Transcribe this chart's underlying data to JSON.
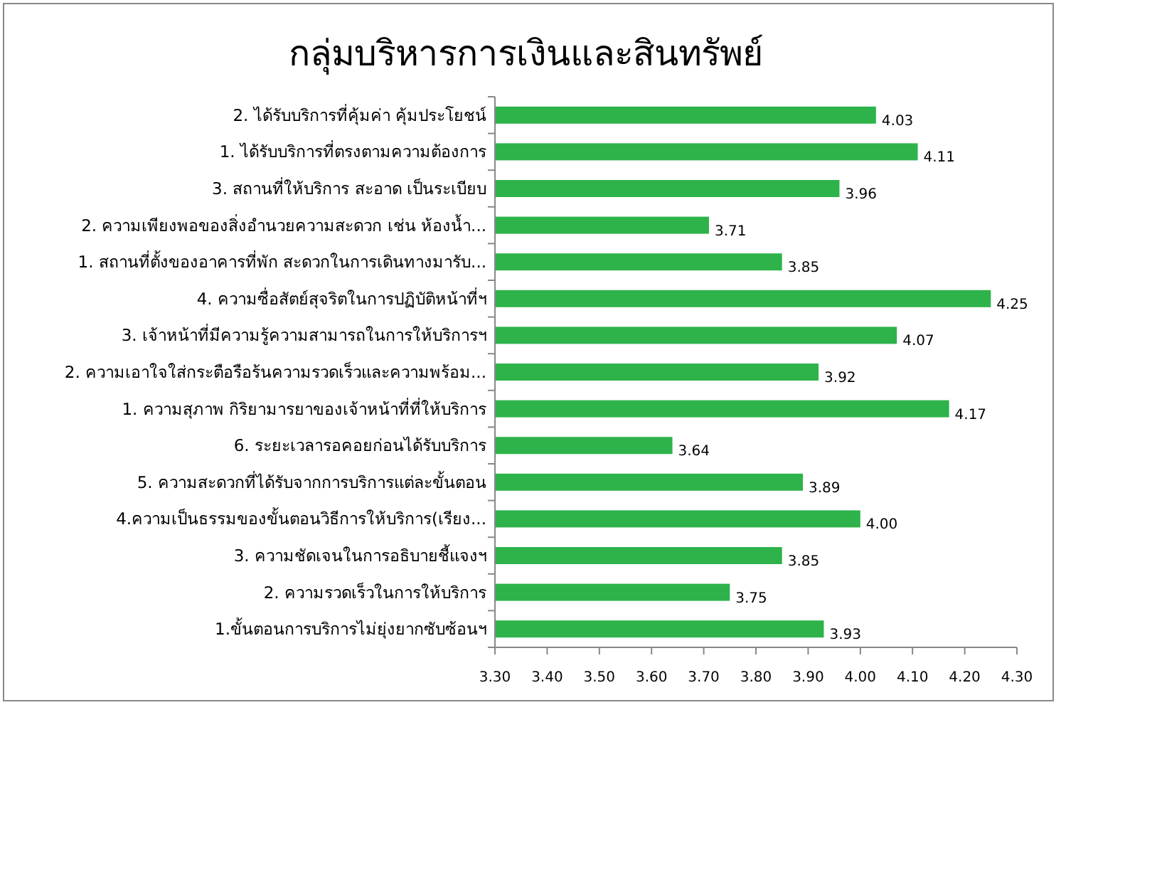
{
  "chart_data": {
    "type": "bar",
    "orientation": "horizontal",
    "title": "กลุ่มบริหารการเงินและสินทรัพย์",
    "categories": [
      "2. ได้รับบริการที่คุ้มค่า  คุ้มประโยชน์",
      "1. ได้รับบริการที่ตรงตามความต้องการ",
      "3.  สถานที่ให้บริการ สะอาด เป็นระเบียบ",
      "2. ความเพียงพอของสิ่งอำนวยความสะดวก   เช่น  ห้องน้ำ...",
      "1. สถานที่ตั้งของอาคารที่พัก   สะดวกในการเดินทางมารับ...",
      "4. ความซื่อสัตย์สุจริตในการปฏิบัติหน้าที่ฯ",
      "3. เจ้าหน้าที่มีความรู้ความสามารถในการให้บริการฯ",
      "2. ความเอาใจใส่กระตือรือร้นความรวดเร็วและความพร้อม...",
      "1. ความสุภาพ กิริยามารยาของเจ้าหน้าที่ที่ให้บริการ",
      "6. ระยะเวลารอคอยก่อนได้รับบริการ",
      "5. ความสะดวกที่ได้รับจากการบริการแต่ละขั้นตอน",
      "4.ความเป็นธรรมของขั้นตอนวิธีการให้บริการ(เรียง...",
      "3. ความชัดเจนในการอธิบายชี้แจงฯ",
      "2. ความรวดเร็วในการให้บริการ",
      "1.ขั้นตอนการบริการไม่ยุ่งยากซับซ้อนฯ"
    ],
    "values": [
      4.03,
      4.11,
      3.96,
      3.71,
      3.85,
      4.25,
      4.07,
      3.92,
      4.17,
      3.64,
      3.89,
      4.0,
      3.85,
      3.75,
      3.93
    ],
    "value_labels": [
      "4.03",
      "4.11",
      "3.96",
      "3.71",
      "3.85",
      "4.25",
      "4.07",
      "3.92",
      "4.17",
      "3.64",
      "3.89",
      "4.00",
      "3.85",
      "3.75",
      "3.93"
    ],
    "color": "#2db34a",
    "xlim": [
      3.3,
      4.3
    ],
    "xticks": [
      {
        "value": 3.3,
        "label": "3.30"
      },
      {
        "value": 3.4,
        "label": "3.40"
      },
      {
        "value": 3.5,
        "label": "3.50"
      },
      {
        "value": 3.6,
        "label": "3.60"
      },
      {
        "value": 3.7,
        "label": "3.70"
      },
      {
        "value": 3.8,
        "label": "3.80"
      },
      {
        "value": 3.9,
        "label": "3.90"
      },
      {
        "value": 4.0,
        "label": "4.00"
      },
      {
        "value": 4.1,
        "label": "4.10"
      },
      {
        "value": 4.2,
        "label": "4.20"
      },
      {
        "value": 4.3,
        "label": "4.30"
      }
    ],
    "grid": false
  }
}
